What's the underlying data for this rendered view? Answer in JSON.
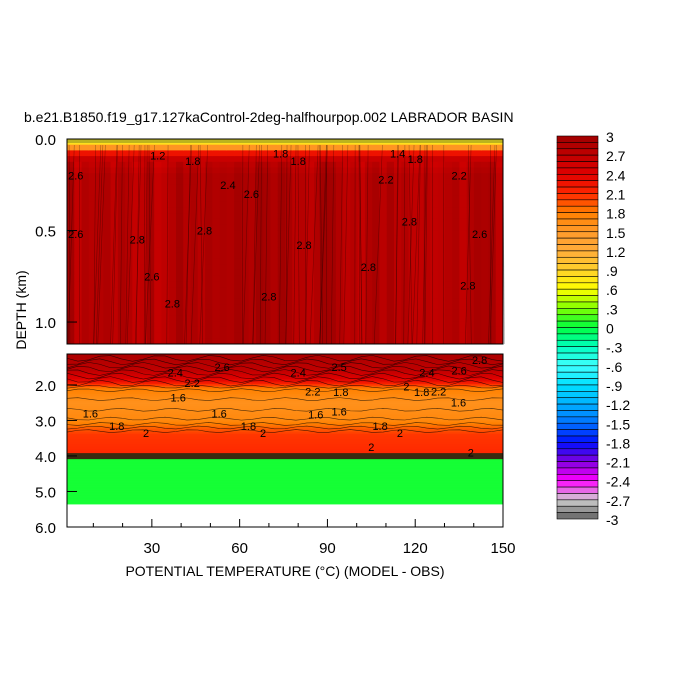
{
  "chart_data": {
    "type": "heatmap",
    "title": "b.e21.B1850.f19_g17.127kaControl-2deg-halfhourpop.002 LABRADOR BASIN",
    "xlabel": "POTENTIAL TEMPERATURE (°C) (MODEL - OBS)",
    "ylabel": "DEPTH (km)",
    "xlim": [
      1,
      150
    ],
    "x_ticks": [
      "30",
      "60",
      "90",
      "120",
      "150"
    ],
    "x_tick_values": [
      30,
      60,
      90,
      120,
      150
    ],
    "panels": [
      {
        "name": "upper",
        "ylim": [
          0.0,
          1.12
        ],
        "y_ticks": [
          "0.0",
          "0.5",
          "1.0"
        ],
        "y_tick_values": [
          0.0,
          0.5,
          1.0
        ]
      },
      {
        "name": "lower",
        "ylim": [
          1.13,
          6.0
        ],
        "y_ticks": [
          "2.0",
          "3.0",
          "4.0",
          "5.0",
          "6.0"
        ],
        "y_tick_values": [
          2.0,
          3.0,
          4.0,
          5.0,
          6.0
        ]
      }
    ],
    "depth_profile": [
      [
        0.0,
        0.6
      ],
      [
        0.03,
        1.0
      ],
      [
        0.06,
        2.0
      ],
      [
        0.1,
        2.6
      ],
      [
        0.2,
        2.8
      ],
      [
        1.12,
        2.8
      ],
      [
        1.13,
        2.9
      ],
      [
        1.6,
        2.7
      ],
      [
        1.9,
        2.3
      ],
      [
        2.1,
        1.8
      ],
      [
        2.5,
        1.6
      ],
      [
        3.0,
        1.7
      ],
      [
        3.2,
        1.9
      ],
      [
        3.4,
        2.05
      ],
      [
        3.9,
        2.1
      ],
      [
        4.08,
        2.1
      ],
      [
        4.1,
        0.05
      ],
      [
        5.35,
        0.05
      ]
    ],
    "data_bottom_depth": 5.35,
    "contour_labels": [
      {
        "x": 32,
        "d": 0.09,
        "t": "1.2"
      },
      {
        "x": 44,
        "d": 0.12,
        "t": "1.8"
      },
      {
        "x": 74,
        "d": 0.08,
        "t": "1.8"
      },
      {
        "x": 80,
        "d": 0.12,
        "t": "1.8"
      },
      {
        "x": 114,
        "d": 0.08,
        "t": "1.4"
      },
      {
        "x": 120,
        "d": 0.11,
        "t": "1.8"
      },
      {
        "x": 4,
        "d": 0.2,
        "t": "2.6"
      },
      {
        "x": 56,
        "d": 0.25,
        "t": "2.4"
      },
      {
        "x": 64,
        "d": 0.3,
        "t": "2.6"
      },
      {
        "x": 110,
        "d": 0.22,
        "t": "2.2"
      },
      {
        "x": 135,
        "d": 0.2,
        "t": "2.2"
      },
      {
        "x": 4,
        "d": 0.52,
        "t": "2.6"
      },
      {
        "x": 25,
        "d": 0.55,
        "t": "2.8"
      },
      {
        "x": 48,
        "d": 0.5,
        "t": "2.8"
      },
      {
        "x": 82,
        "d": 0.58,
        "t": "2.8"
      },
      {
        "x": 118,
        "d": 0.45,
        "t": "2.8"
      },
      {
        "x": 142,
        "d": 0.52,
        "t": "2.6"
      },
      {
        "x": 30,
        "d": 0.75,
        "t": "2.6"
      },
      {
        "x": 70,
        "d": 0.86,
        "t": "2.8"
      },
      {
        "x": 104,
        "d": 0.7,
        "t": "2.8"
      },
      {
        "x": 138,
        "d": 0.8,
        "t": "2.8"
      },
      {
        "x": 37,
        "d": 0.9,
        "t": "2.8"
      },
      {
        "x": 54,
        "d": 1.5,
        "t": "2.6"
      },
      {
        "x": 94,
        "d": 1.5,
        "t": "2.5"
      },
      {
        "x": 142,
        "d": 1.3,
        "t": "2.8"
      },
      {
        "x": 135,
        "d": 1.6,
        "t": "2.6"
      },
      {
        "x": 38,
        "d": 1.65,
        "t": "2.4"
      },
      {
        "x": 80,
        "d": 1.65,
        "t": "2.4"
      },
      {
        "x": 124,
        "d": 1.65,
        "t": "2.4"
      },
      {
        "x": 39,
        "d": 1.95,
        "t": "2.2"
      },
      {
        "x": 85,
        "d": 1.85,
        "t": "2.2"
      },
      {
        "x": 128,
        "d": 1.85,
        "t": "2.2"
      },
      {
        "x": 117,
        "d": 2.05,
        "t": "2"
      },
      {
        "x": 85,
        "d": 2.2,
        "t": "1.8"
      },
      {
        "x": 127,
        "d": 2.2,
        "t": "1.8"
      },
      {
        "x": 39,
        "d": 2.35,
        "t": "1.6"
      },
      {
        "x": 86,
        "d": 2.5,
        "t": "1.6"
      },
      {
        "x": 130,
        "d": 2.5,
        "t": "1.6"
      },
      {
        "x": 9,
        "d": 2.8,
        "t": "1.6"
      },
      {
        "x": 53,
        "d": 2.8,
        "t": "1.6"
      },
      {
        "x": 94,
        "d": 2.75,
        "t": "1.6"
      },
      {
        "x": 18,
        "d": 3.15,
        "t": "1.8"
      },
      {
        "x": 63,
        "d": 3.15,
        "t": "1.8"
      },
      {
        "x": 108,
        "d": 3.15,
        "t": "1.8"
      },
      {
        "x": 28,
        "d": 3.35,
        "t": "2"
      },
      {
        "x": 68,
        "d": 3.35,
        "t": "2"
      },
      {
        "x": 110,
        "d": 3.35,
        "t": "2"
      },
      {
        "x": 105,
        "d": 3.75,
        "t": "2"
      },
      {
        "x": 139,
        "d": 3.9,
        "t": "2"
      }
    ],
    "colorbar": {
      "levels_min": -3,
      "levels_max": 3,
      "level_step": 0.1,
      "tick_labels": [
        "3",
        "2.7",
        "2.4",
        "2.1",
        "1.8",
        "1.5",
        "1.2",
        ".9",
        ".6",
        ".3",
        "0",
        "-.3",
        "-.6",
        "-.9",
        "-1.2",
        "-1.5",
        "-1.8",
        "-2.1",
        "-2.4",
        "-2.7",
        "-3"
      ],
      "anchor_colors": [
        "#a00000",
        "#c00000",
        "#e00000",
        "#ff2800",
        "#ff8000",
        "#ff9a2a",
        "#ffac3a",
        "#ffd02a",
        "#ffff00",
        "#80ff00",
        "#00ff40",
        "#00ffc0",
        "#40ffff",
        "#00e0ff",
        "#00b0ff",
        "#0070ff",
        "#0010ff",
        "#8000e0",
        "#ff00ff",
        "#d0d0d0",
        "#606060"
      ]
    },
    "dense_band_color": "#3a2a10",
    "surface_color_hint": "#a0a020"
  }
}
